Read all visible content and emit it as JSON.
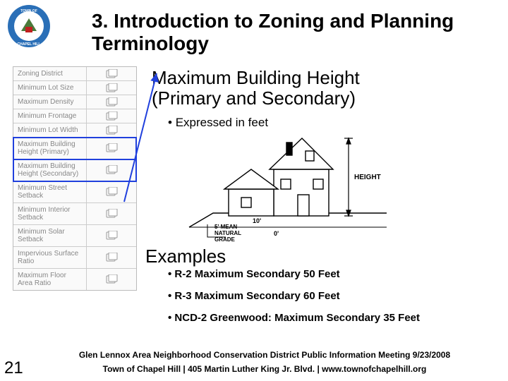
{
  "title": "3.  Introduction to Zoning and Planning Terminology",
  "subtitle_l1": "Maximum Building Height",
  "subtitle_l2": "(Primary and Secondary)",
  "bullet": "Expressed in feet",
  "examples_heading": "Examples",
  "examples": {
    "e1": "R-2 Maximum Secondary 50 Feet",
    "e2": "R-3 Maximum Secondary 60 Feet",
    "e3": "NCD-2 Greenwood: Maximum Secondary 35 Feet"
  },
  "footer1": "Glen Lennox Area Neighborhood Conservation District Public Information Meeting 9/23/2008",
  "footer2": "Town of Chapel Hill | 405 Martin Luther King Jr. Blvd. | www.townofchapelhill.org",
  "page_number": "21",
  "logo": {
    "outer_ring": "#2a6fb7",
    "inner": "#ffffff",
    "accent": "#c02020",
    "text_top": "TOWN OF",
    "text_bottom": "CHAPEL HILL"
  },
  "left_table": {
    "rows": [
      {
        "label": "Zoning District",
        "hl": false
      },
      {
        "label": "Minimum Lot Size",
        "hl": false
      },
      {
        "label": "Maximum Density",
        "hl": false
      },
      {
        "label": "Minimum Frontage",
        "hl": false
      },
      {
        "label": "Minimum Lot Width",
        "hl": false
      },
      {
        "label": "Maximum Building Height (Primary)",
        "hl": true
      },
      {
        "label": "Maximum Building Height (Secondary)",
        "hl": true
      },
      {
        "label": "Minimum Street Setback",
        "hl": false
      },
      {
        "label": "Minimum Interior Setback",
        "hl": false
      },
      {
        "label": "Minimum Solar Setback",
        "hl": false
      },
      {
        "label": "Impervious Surface Ratio",
        "hl": false
      },
      {
        "label": "Maximum Floor Area Ratio",
        "hl": false
      }
    ],
    "page_icon": "▭"
  },
  "arrow_color": "#2040dd",
  "house_diagram": {
    "stroke": "#000000",
    "labels": {
      "height": "HEIGHT",
      "ten": "10'",
      "grade_l1": "5' MEAN",
      "grade_l2": "NATURAL",
      "grade_l3": "GRADE",
      "zero": "0'"
    }
  }
}
